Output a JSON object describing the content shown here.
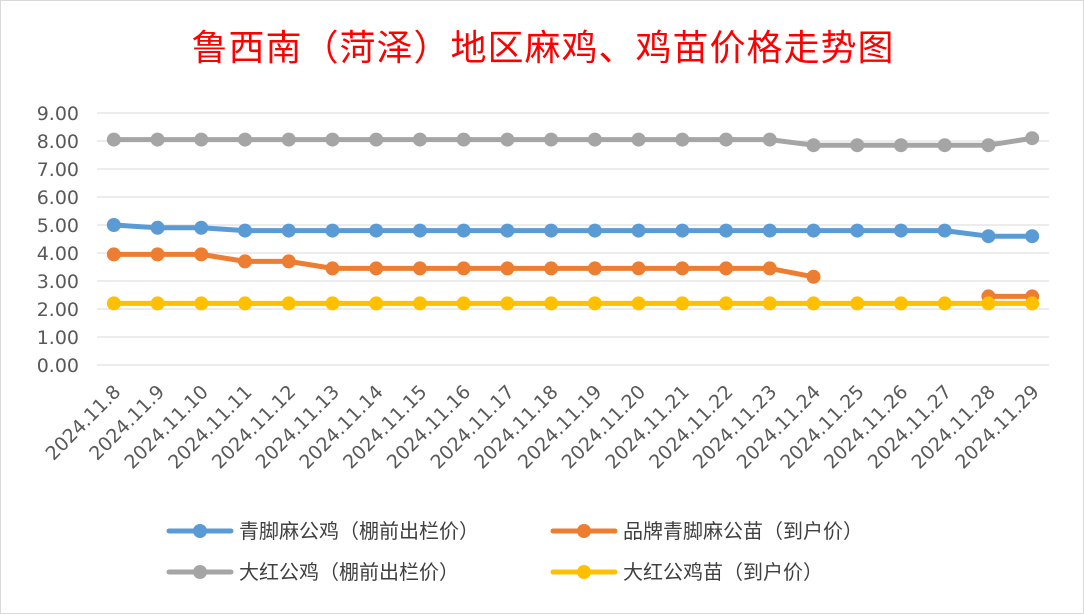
{
  "chart_data": {
    "type": "line",
    "title": "鲁西南（菏泽）地区麻鸡、鸡苗价格走势图",
    "xlabel": "",
    "ylabel": "",
    "ylim": [
      0,
      9
    ],
    "y_ticks": [
      "0.00",
      "1.00",
      "2.00",
      "3.00",
      "4.00",
      "5.00",
      "6.00",
      "7.00",
      "8.00",
      "9.00"
    ],
    "grid": true,
    "legend_position": "bottom",
    "categories": [
      "2024.11.8",
      "2024.11.9",
      "2024.11.10",
      "2024.11.11",
      "2024.11.12",
      "2024.11.13",
      "2024.11.14",
      "2024.11.15",
      "2024.11.16",
      "2024.11.17",
      "2024.11.18",
      "2024.11.19",
      "2024.11.20",
      "2024.11.21",
      "2024.11.22",
      "2024.11.23",
      "2024.11.24",
      "2024.11.25",
      "2024.11.26",
      "2024.11.27",
      "2024.11.28",
      "2024.11.29"
    ],
    "series": [
      {
        "name": "青脚麻公鸡（棚前出栏价）",
        "color": "#5b9bd5",
        "values": [
          5.0,
          4.9,
          4.9,
          4.8,
          4.8,
          4.8,
          4.8,
          4.8,
          4.8,
          4.8,
          4.8,
          4.8,
          4.8,
          4.8,
          4.8,
          4.8,
          4.8,
          4.8,
          4.8,
          4.8,
          4.6,
          4.6
        ]
      },
      {
        "name": "品牌青脚麻公苗（到户价）",
        "color": "#ed7d31",
        "values": [
          3.95,
          3.95,
          3.95,
          3.7,
          3.7,
          3.45,
          3.45,
          3.45,
          3.45,
          3.45,
          3.45,
          3.45,
          3.45,
          3.45,
          3.45,
          3.45,
          3.15,
          null,
          null,
          null,
          2.45,
          2.45
        ]
      },
      {
        "name": "大红公鸡（棚前出栏价）",
        "color": "#a5a5a5",
        "values": [
          8.05,
          8.05,
          8.05,
          8.05,
          8.05,
          8.05,
          8.05,
          8.05,
          8.05,
          8.05,
          8.05,
          8.05,
          8.05,
          8.05,
          8.05,
          8.05,
          7.85,
          7.85,
          7.85,
          7.85,
          7.85,
          8.1
        ]
      },
      {
        "name": "大红公鸡苗（到户价）",
        "color": "#ffc000",
        "values": [
          2.2,
          2.2,
          2.2,
          2.2,
          2.2,
          2.2,
          2.2,
          2.2,
          2.2,
          2.2,
          2.2,
          2.2,
          2.2,
          2.2,
          2.2,
          2.2,
          2.2,
          2.2,
          2.2,
          2.2,
          2.2,
          2.2
        ]
      }
    ]
  }
}
